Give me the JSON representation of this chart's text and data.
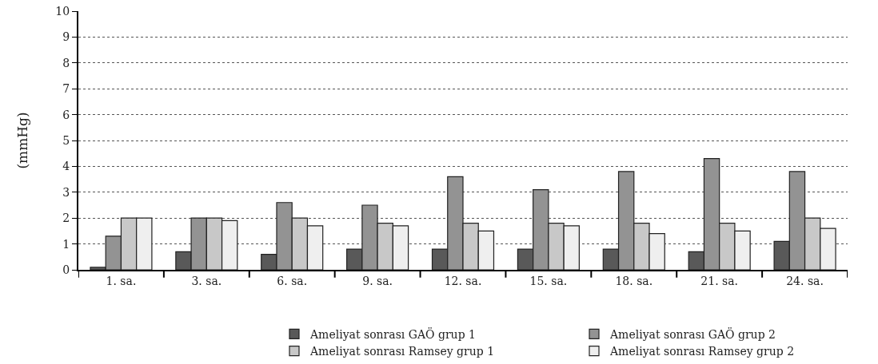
{
  "chart_data": {
    "type": "bar",
    "ylabel": "(mmHg)",
    "categories": [
      "1. sa.",
      "3. sa.",
      "6. sa.",
      "9. sa.",
      "12. sa.",
      "15. sa.",
      "18. sa.",
      "21. sa.",
      "24. sa."
    ],
    "series": [
      {
        "name": "Ameliyat sonrası GAÖ grup 1",
        "color": "#595959",
        "values": [
          0.1,
          0.7,
          0.6,
          0.8,
          0.8,
          0.8,
          0.8,
          0.7,
          1.1
        ]
      },
      {
        "name": "Ameliyat sonrası GAÖ grup 2",
        "color": "#939393",
        "values": [
          1.3,
          2.0,
          2.6,
          2.5,
          3.6,
          3.1,
          3.8,
          4.3,
          3.8
        ]
      },
      {
        "name": "Ameliyat sonrası Ramsey grup 1",
        "color": "#c8c8c8",
        "values": [
          2.0,
          2.0,
          2.0,
          1.8,
          1.8,
          1.8,
          1.8,
          1.8,
          2.0
        ]
      },
      {
        "name": "Ameliyat sonrası Ramsey grup 2",
        "color": "#efefef",
        "values": [
          2.0,
          1.9,
          1.7,
          1.7,
          1.5,
          1.7,
          1.4,
          1.5,
          1.6
        ]
      }
    ],
    "ylim": [
      0,
      10
    ],
    "yticks": [
      0,
      1,
      2,
      3,
      4,
      5,
      6,
      7,
      8,
      9,
      10
    ],
    "grid": "y",
    "legend": "bottom"
  }
}
